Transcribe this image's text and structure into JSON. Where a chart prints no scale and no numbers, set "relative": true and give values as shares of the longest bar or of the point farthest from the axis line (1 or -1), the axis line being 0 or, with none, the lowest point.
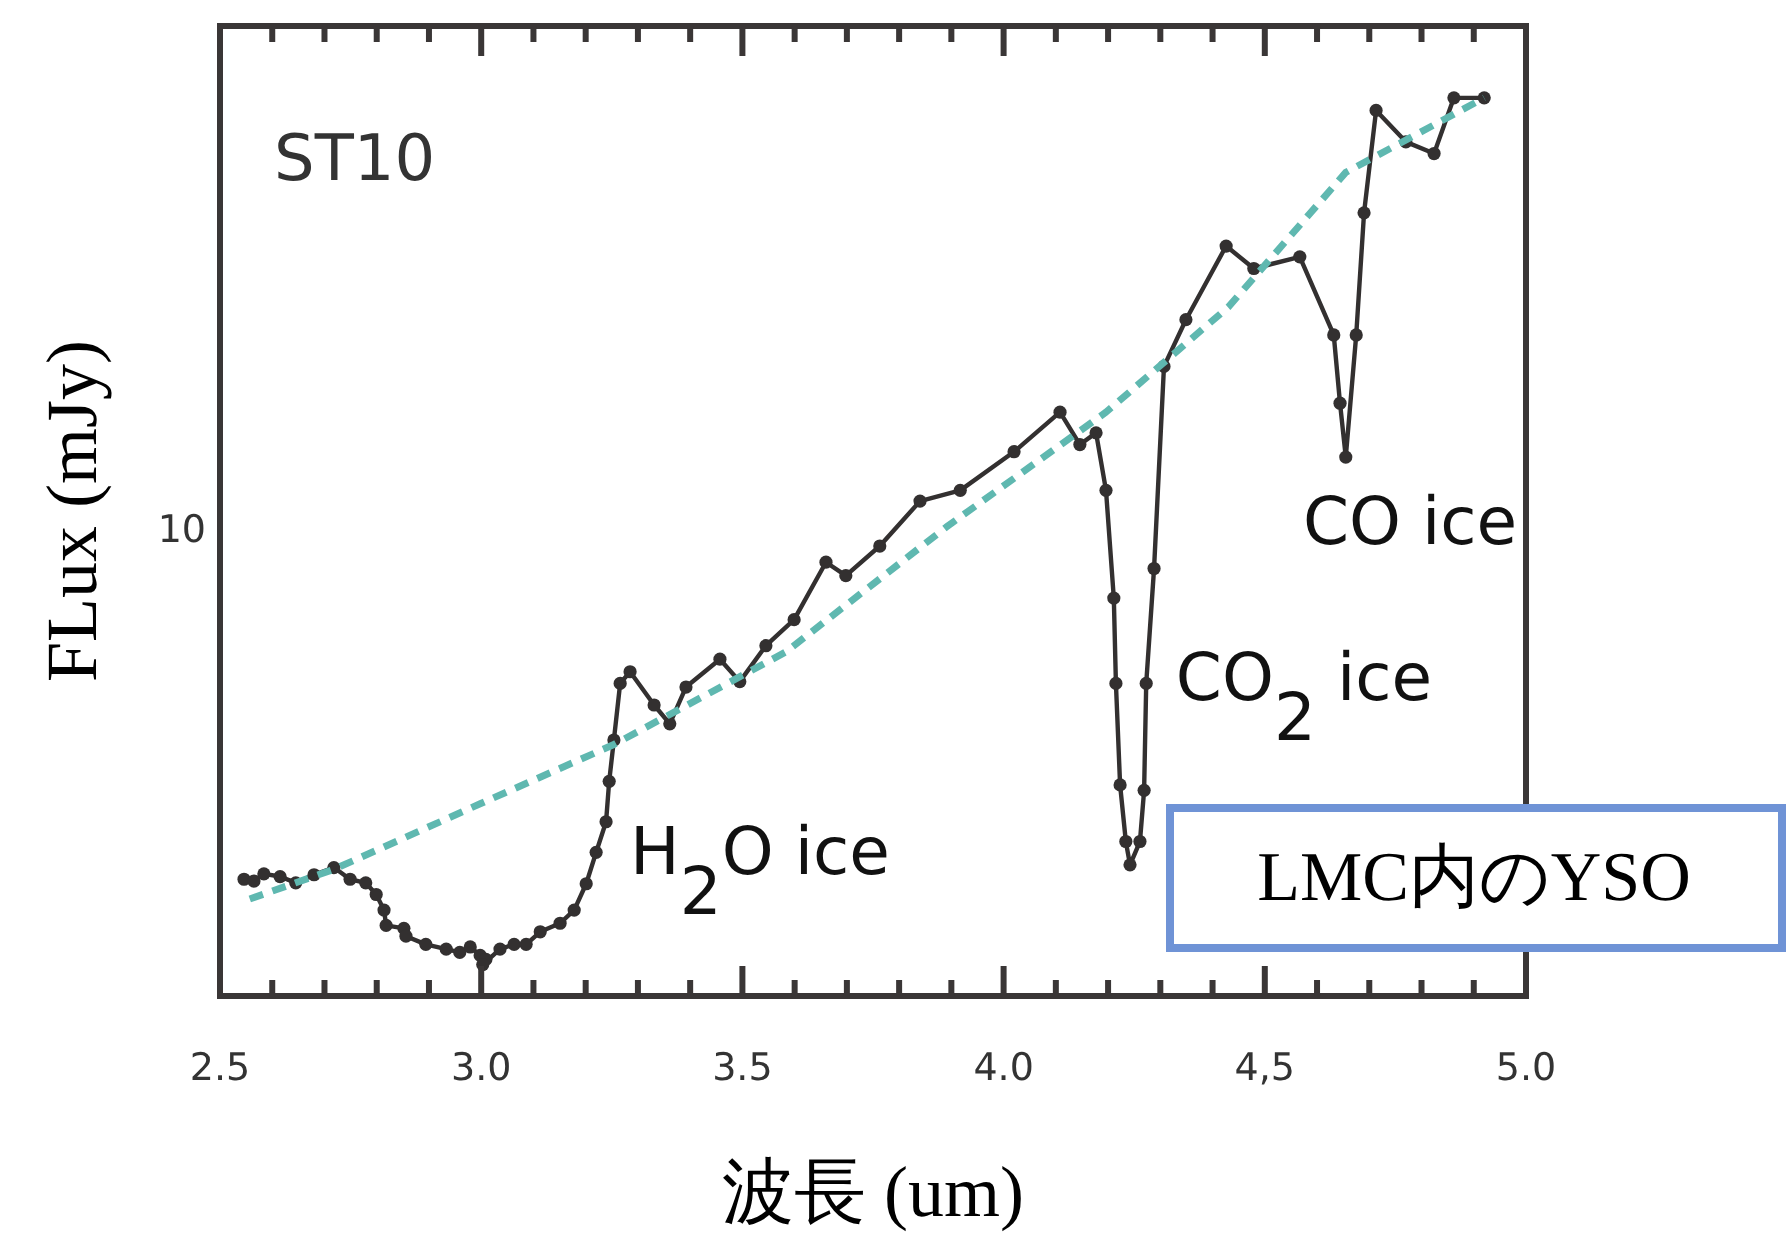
{
  "chart_data": {
    "type": "line",
    "xlabel": "波長 (um)",
    "ylabel": "FLux (mJy)",
    "relative": true,
    "xlim": [
      2.5,
      5.0
    ],
    "xticks": [
      {
        "value": 2.5,
        "label": "2.5"
      },
      {
        "value": 2.6,
        "label": null
      },
      {
        "value": 2.7,
        "label": null
      },
      {
        "value": 2.8,
        "label": null
      },
      {
        "value": 2.9,
        "label": null
      },
      {
        "value": 3.0,
        "label": "3.0"
      },
      {
        "value": 3.1,
        "label": null
      },
      {
        "value": 3.2,
        "label": null
      },
      {
        "value": 3.3,
        "label": null
      },
      {
        "value": 3.4,
        "label": null
      },
      {
        "value": 3.5,
        "label": "3.5"
      },
      {
        "value": 3.6,
        "label": null
      },
      {
        "value": 3.7,
        "label": null
      },
      {
        "value": 3.8,
        "label": null
      },
      {
        "value": 3.9,
        "label": null
      },
      {
        "value": 4.0,
        "label": "4.0"
      },
      {
        "value": 4.1,
        "label": null
      },
      {
        "value": 4.2,
        "label": null
      },
      {
        "value": 4.3,
        "label": null
      },
      {
        "value": 4.4,
        "label": null
      },
      {
        "value": 4.5,
        "label": "4,5"
      },
      {
        "value": 4.6,
        "label": null
      },
      {
        "value": 4.7,
        "label": null
      },
      {
        "value": 4.8,
        "label": null
      },
      {
        "value": 4.9,
        "label": null
      },
      {
        "value": 5.0,
        "label": "5.0"
      }
    ],
    "grid": false,
    "series": [
      {
        "color": "#333030",
        "marker": "circle",
        "line_style": "solid",
        "x": [
          2.546,
          2.565,
          2.584,
          2.615,
          2.645,
          2.68,
          2.718,
          2.749,
          2.779,
          2.799,
          2.814,
          2.818,
          2.852,
          2.856,
          2.894,
          2.933,
          2.959,
          2.979,
          2.998,
          3.009,
          3.003,
          3.036,
          3.063,
          3.086,
          3.113,
          3.151,
          3.178,
          3.201,
          3.22,
          3.239,
          3.245,
          3.254,
          3.266,
          3.285,
          3.331,
          3.361,
          3.392,
          3.457,
          3.495,
          3.545,
          3.599,
          3.66,
          3.698,
          3.763,
          3.84,
          3.917,
          4.02,
          4.108,
          4.146,
          4.177,
          4.196,
          4.211,
          4.215,
          4.223,
          4.234,
          4.242,
          4.261,
          4.269,
          4.273,
          4.288,
          4.307,
          4.349,
          4.426,
          4.479,
          4.567,
          4.632,
          4.644,
          4.655,
          4.675,
          4.69,
          4.713,
          4.77,
          4.824,
          4.862,
          4.92
        ],
        "values": [
          0.13,
          0.128,
          0.136,
          0.133,
          0.126,
          0.135,
          0.143,
          0.13,
          0.126,
          0.113,
          0.0957,
          0.0786,
          0.0753,
          0.0666,
          0.0575,
          0.0522,
          0.0485,
          0.0546,
          0.0452,
          0.0408,
          0.035,
          0.0522,
          0.0575,
          0.0575,
          0.0715,
          0.081,
          0.0957,
          0.125,
          0.16,
          0.194,
          0.239,
          0.285,
          0.348,
          0.361,
          0.324,
          0.303,
          0.344,
          0.375,
          0.35,
          0.39,
          0.419,
          0.483,
          0.468,
          0.501,
          0.551,
          0.563,
          0.606,
          0.65,
          0.614,
          0.627,
          0.563,
          0.443,
          0.348,
          0.235,
          0.172,
          0.146,
          0.172,
          0.229,
          0.348,
          0.476,
          0.701,
          0.753,
          0.835,
          0.81,
          0.823,
          0.736,
          0.66,
          0.6,
          0.736,
          0.872,
          0.986,
          0.951,
          0.938,
          1,
          1
        ]
      },
      {
        "color": "#5fb8b0",
        "marker": "none",
        "line_style": "dashed",
        "x": [
          2.557,
          2.718,
          2.998,
          3.254,
          3.583,
          3.89,
          4.196,
          4.43,
          4.655,
          4.92
        ],
        "values": [
          0.108,
          0.141,
          0.214,
          0.28,
          0.383,
          0.522,
          0.65,
          0.767,
          0.917,
          1.0
        ]
      }
    ],
    "annotations": [
      "10",
      "ST10",
      "H$_{2}$O ice",
      "CO$_{2}$ ice",
      "CO ice",
      "LMC内のYSO"
    ]
  }
}
